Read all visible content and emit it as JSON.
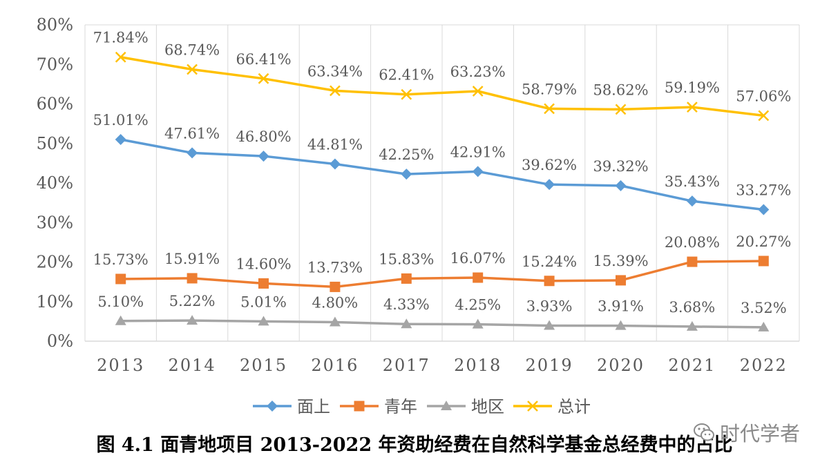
{
  "chart_data": {
    "type": "line",
    "categories": [
      "2013",
      "2014",
      "2015",
      "2016",
      "2017",
      "2018",
      "2019",
      "2020",
      "2021",
      "2022"
    ],
    "y_tick_labels": [
      "0%",
      "10%",
      "20%",
      "30%",
      "40%",
      "50%",
      "60%",
      "70%",
      "80%"
    ],
    "ylim": [
      0,
      80
    ],
    "grid": "vertical",
    "legend_position": "bottom",
    "series": [
      {
        "name": "面上",
        "color": "#5b9bd5",
        "marker": "diamond",
        "values": [
          51.01,
          47.61,
          46.8,
          44.81,
          42.25,
          42.91,
          39.62,
          39.32,
          35.43,
          33.27
        ],
        "labels": [
          "51.01%",
          "47.61%",
          "46.80%",
          "44.81%",
          "42.25%",
          "42.91%",
          "39.62%",
          "39.32%",
          "35.43%",
          "33.27%"
        ]
      },
      {
        "name": "青年",
        "color": "#ed7d31",
        "marker": "square",
        "values": [
          15.73,
          15.91,
          14.6,
          13.73,
          15.83,
          16.07,
          15.24,
          15.39,
          20.08,
          20.27
        ],
        "labels": [
          "15.73%",
          "15.91%",
          "14.60%",
          "13.73%",
          "15.83%",
          "16.07%",
          "15.24%",
          "15.39%",
          "20.08%",
          "20.27%"
        ]
      },
      {
        "name": "地区",
        "color": "#a5a5a5",
        "marker": "triangle",
        "values": [
          5.1,
          5.22,
          5.01,
          4.8,
          4.33,
          4.25,
          3.93,
          3.91,
          3.68,
          3.52
        ],
        "labels": [
          "5.10%",
          "5.22%",
          "5.01%",
          "4.80%",
          "4.33%",
          "4.25%",
          "3.93%",
          "3.91%",
          "3.68%",
          "3.52%"
        ]
      },
      {
        "name": "总计",
        "color": "#ffc000",
        "marker": "x",
        "values": [
          71.84,
          68.74,
          66.41,
          63.34,
          62.41,
          63.23,
          58.79,
          58.62,
          59.19,
          57.06
        ],
        "labels": [
          "71.84%",
          "68.74%",
          "66.41%",
          "63.34%",
          "62.41%",
          "63.23%",
          "58.79%",
          "58.62%",
          "59.19%",
          "57.06%"
        ]
      }
    ]
  },
  "caption": "图 4.1  面青地项目 2013-2022 年资助经费在自然科学基金总经费中的占比",
  "watermark": {
    "text": "时代学者",
    "icon": "wechat-icon"
  }
}
